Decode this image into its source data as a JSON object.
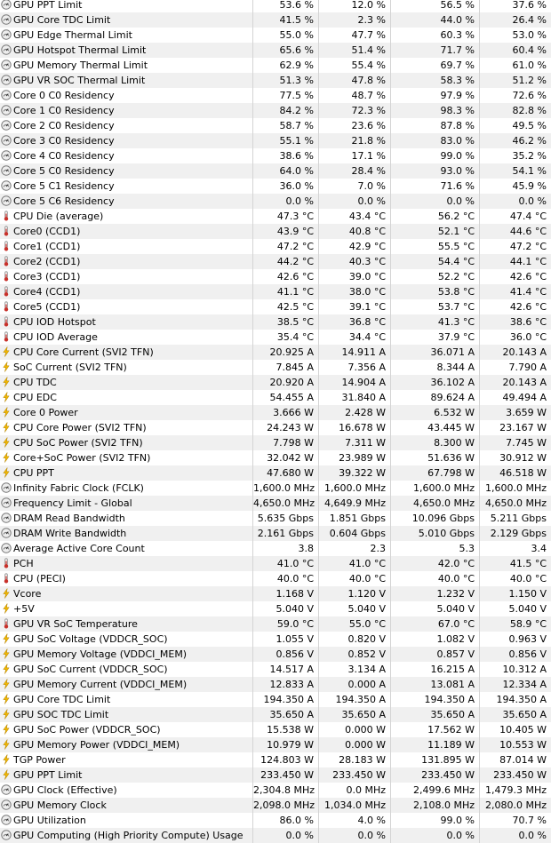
{
  "icon_colors": {
    "gauge": "#7a7a7a",
    "thermometer": "#c8302a",
    "bolt": "#f2b800"
  },
  "rows": [
    {
      "icon": "gauge-icon",
      "label": "GPU PPT Limit",
      "current": "53.6 %",
      "min": "12.0 %",
      "max": "56.5 %",
      "avg": "37.6 %"
    },
    {
      "icon": "gauge-icon",
      "label": "GPU Core TDC Limit",
      "current": "41.5 %",
      "min": "2.3 %",
      "max": "44.0 %",
      "avg": "26.4 %"
    },
    {
      "icon": "gauge-icon",
      "label": "GPU Edge Thermal Limit",
      "current": "55.0 %",
      "min": "47.7 %",
      "max": "60.3 %",
      "avg": "53.0 %"
    },
    {
      "icon": "gauge-icon",
      "label": "GPU Hotspot Thermal Limit",
      "current": "65.6 %",
      "min": "51.4 %",
      "max": "71.7 %",
      "avg": "60.4 %"
    },
    {
      "icon": "gauge-icon",
      "label": "GPU Memory Thermal Limit",
      "current": "62.9 %",
      "min": "55.4 %",
      "max": "69.7 %",
      "avg": "61.0 %"
    },
    {
      "icon": "gauge-icon",
      "label": "GPU VR SOC Thermal Limit",
      "current": "51.3 %",
      "min": "47.8 %",
      "max": "58.3 %",
      "avg": "51.2 %"
    },
    {
      "icon": "gauge-icon",
      "label": "Core 0 C0 Residency",
      "current": "77.5 %",
      "min": "48.7 %",
      "max": "97.9 %",
      "avg": "72.6 %"
    },
    {
      "icon": "gauge-icon",
      "label": "Core 1 C0 Residency",
      "current": "84.2 %",
      "min": "72.3 %",
      "max": "98.3 %",
      "avg": "82.8 %"
    },
    {
      "icon": "gauge-icon",
      "label": "Core 2 C0 Residency",
      "current": "58.7 %",
      "min": "23.6 %",
      "max": "87.8 %",
      "avg": "49.5 %"
    },
    {
      "icon": "gauge-icon",
      "label": "Core 3 C0 Residency",
      "current": "55.1 %",
      "min": "21.8 %",
      "max": "83.0 %",
      "avg": "46.2 %"
    },
    {
      "icon": "gauge-icon",
      "label": "Core 4 C0 Residency",
      "current": "38.6 %",
      "min": "17.1 %",
      "max": "99.0 %",
      "avg": "35.2 %"
    },
    {
      "icon": "gauge-icon",
      "label": "Core 5 C0 Residency",
      "current": "64.0 %",
      "min": "28.4 %",
      "max": "93.0 %",
      "avg": "54.1 %"
    },
    {
      "icon": "gauge-icon",
      "label": "Core 5 C1 Residency",
      "current": "36.0 %",
      "min": "7.0 %",
      "max": "71.6 %",
      "avg": "45.9 %"
    },
    {
      "icon": "gauge-icon",
      "label": "Core 5 C6 Residency",
      "current": "0.0 %",
      "min": "0.0 %",
      "max": "0.0 %",
      "avg": "0.0 %"
    },
    {
      "icon": "thermometer-icon",
      "label": "CPU Die (average)",
      "current": "47.3 °C",
      "min": "43.4 °C",
      "max": "56.2 °C",
      "avg": "47.4 °C"
    },
    {
      "icon": "thermometer-icon",
      "label": "Core0 (CCD1)",
      "current": "43.9 °C",
      "min": "40.8 °C",
      "max": "52.1 °C",
      "avg": "44.6 °C"
    },
    {
      "icon": "thermometer-icon",
      "label": "Core1 (CCD1)",
      "current": "47.2 °C",
      "min": "42.9 °C",
      "max": "55.5 °C",
      "avg": "47.2 °C"
    },
    {
      "icon": "thermometer-icon",
      "label": "Core2 (CCD1)",
      "current": "44.2 °C",
      "min": "40.3 °C",
      "max": "54.4 °C",
      "avg": "44.1 °C"
    },
    {
      "icon": "thermometer-icon",
      "label": "Core3 (CCD1)",
      "current": "42.6 °C",
      "min": "39.0 °C",
      "max": "52.2 °C",
      "avg": "42.6 °C"
    },
    {
      "icon": "thermometer-icon",
      "label": "Core4 (CCD1)",
      "current": "41.1 °C",
      "min": "38.0 °C",
      "max": "53.8 °C",
      "avg": "41.4 °C"
    },
    {
      "icon": "thermometer-icon",
      "label": "Core5 (CCD1)",
      "current": "42.5 °C",
      "min": "39.1 °C",
      "max": "53.7 °C",
      "avg": "42.6 °C"
    },
    {
      "icon": "thermometer-icon",
      "label": "CPU IOD Hotspot",
      "current": "38.5 °C",
      "min": "36.8 °C",
      "max": "41.3 °C",
      "avg": "38.6 °C"
    },
    {
      "icon": "thermometer-icon",
      "label": "CPU IOD Average",
      "current": "35.4 °C",
      "min": "34.4 °C",
      "max": "37.9 °C",
      "avg": "36.0 °C"
    },
    {
      "icon": "bolt-icon",
      "label": "CPU Core Current (SVI2 TFN)",
      "current": "20.925 A",
      "min": "14.911 A",
      "max": "36.071 A",
      "avg": "20.143 A"
    },
    {
      "icon": "bolt-icon",
      "label": "SoC Current (SVI2 TFN)",
      "current": "7.845 A",
      "min": "7.356 A",
      "max": "8.344 A",
      "avg": "7.790 A"
    },
    {
      "icon": "bolt-icon",
      "label": "CPU TDC",
      "current": "20.920 A",
      "min": "14.904 A",
      "max": "36.102 A",
      "avg": "20.143 A"
    },
    {
      "icon": "bolt-icon",
      "label": "CPU EDC",
      "current": "54.455 A",
      "min": "31.840 A",
      "max": "89.624 A",
      "avg": "49.494 A"
    },
    {
      "icon": "bolt-icon",
      "label": "Core 0 Power",
      "current": "3.666 W",
      "min": "2.428 W",
      "max": "6.532 W",
      "avg": "3.659 W"
    },
    {
      "icon": "bolt-icon",
      "label": "CPU Core Power (SVI2 TFN)",
      "current": "24.243 W",
      "min": "16.678 W",
      "max": "43.445 W",
      "avg": "23.167 W"
    },
    {
      "icon": "bolt-icon",
      "label": "CPU SoC Power (SVI2 TFN)",
      "current": "7.798 W",
      "min": "7.311 W",
      "max": "8.300 W",
      "avg": "7.745 W"
    },
    {
      "icon": "bolt-icon",
      "label": "Core+SoC Power (SVI2 TFN)",
      "current": "32.042 W",
      "min": "23.989 W",
      "max": "51.636 W",
      "avg": "30.912 W"
    },
    {
      "icon": "bolt-icon",
      "label": "CPU PPT",
      "current": "47.680 W",
      "min": "39.322 W",
      "max": "67.798 W",
      "avg": "46.518 W"
    },
    {
      "icon": "gauge-icon",
      "label": "Infinity Fabric Clock (FCLK)",
      "current": "1,600.0 MHz",
      "min": "1,600.0 MHz",
      "max": "1,600.0 MHz",
      "avg": "1,600.0 MHz"
    },
    {
      "icon": "gauge-icon",
      "label": "Frequency Limit - Global",
      "current": "4,650.0 MHz",
      "min": "4,649.9 MHz",
      "max": "4,650.0 MHz",
      "avg": "4,650.0 MHz"
    },
    {
      "icon": "gauge-icon",
      "label": "DRAM Read Bandwidth",
      "current": "5.635 Gbps",
      "min": "1.851 Gbps",
      "max": "10.096 Gbps",
      "avg": "5.211 Gbps"
    },
    {
      "icon": "gauge-icon",
      "label": "DRAM Write Bandwidth",
      "current": "2.161 Gbps",
      "min": "0.604 Gbps",
      "max": "5.010 Gbps",
      "avg": "2.129 Gbps"
    },
    {
      "icon": "gauge-icon",
      "label": "Average Active Core Count",
      "current": "3.8",
      "min": "2.3",
      "max": "5.3",
      "avg": "3.4"
    },
    {
      "icon": "thermometer-icon",
      "label": "PCH",
      "current": "41.0 °C",
      "min": "41.0 °C",
      "max": "42.0 °C",
      "avg": "41.5 °C"
    },
    {
      "icon": "thermometer-icon",
      "label": "CPU (PECI)",
      "current": "40.0 °C",
      "min": "40.0 °C",
      "max": "40.0 °C",
      "avg": "40.0 °C"
    },
    {
      "icon": "bolt-icon",
      "label": "Vcore",
      "current": "1.168 V",
      "min": "1.120 V",
      "max": "1.232 V",
      "avg": "1.150 V"
    },
    {
      "icon": "bolt-icon",
      "label": "+5V",
      "current": "5.040 V",
      "min": "5.040 V",
      "max": "5.040 V",
      "avg": "5.040 V"
    },
    {
      "icon": "thermometer-icon",
      "label": "GPU VR SoC Temperature",
      "current": "59.0 °C",
      "min": "55.0 °C",
      "max": "67.0 °C",
      "avg": "58.9 °C"
    },
    {
      "icon": "bolt-icon",
      "label": "GPU SoC Voltage (VDDCR_SOC)",
      "current": "1.055 V",
      "min": "0.820 V",
      "max": "1.082 V",
      "avg": "0.963 V"
    },
    {
      "icon": "bolt-icon",
      "label": "GPU Memory Voltage (VDDCI_MEM)",
      "current": "0.856 V",
      "min": "0.852 V",
      "max": "0.857 V",
      "avg": "0.856 V"
    },
    {
      "icon": "bolt-icon",
      "label": "GPU SoC Current (VDDCR_SOC)",
      "current": "14.517 A",
      "min": "3.134 A",
      "max": "16.215 A",
      "avg": "10.312 A"
    },
    {
      "icon": "bolt-icon",
      "label": "GPU Memory Current (VDDCI_MEM)",
      "current": "12.833 A",
      "min": "0.000 A",
      "max": "13.081 A",
      "avg": "12.334 A"
    },
    {
      "icon": "bolt-icon",
      "label": "GPU Core TDC Limit",
      "current": "194.350 A",
      "min": "194.350 A",
      "max": "194.350 A",
      "avg": "194.350 A"
    },
    {
      "icon": "bolt-icon",
      "label": "GPU SOC TDC Limit",
      "current": "35.650 A",
      "min": "35.650 A",
      "max": "35.650 A",
      "avg": "35.650 A"
    },
    {
      "icon": "bolt-icon",
      "label": "GPU SoC Power (VDDCR_SOC)",
      "current": "15.538 W",
      "min": "0.000 W",
      "max": "17.562 W",
      "avg": "10.405 W"
    },
    {
      "icon": "bolt-icon",
      "label": "GPU Memory Power (VDDCI_MEM)",
      "current": "10.979 W",
      "min": "0.000 W",
      "max": "11.189 W",
      "avg": "10.553 W"
    },
    {
      "icon": "bolt-icon",
      "label": "TGP Power",
      "current": "124.803 W",
      "min": "28.183 W",
      "max": "131.895 W",
      "avg": "87.014 W"
    },
    {
      "icon": "bolt-icon",
      "label": "GPU PPT Limit",
      "current": "233.450 W",
      "min": "233.450 W",
      "max": "233.450 W",
      "avg": "233.450 W"
    },
    {
      "icon": "gauge-icon",
      "label": "GPU Clock (Effective)",
      "current": "2,304.8 MHz",
      "min": "0.0 MHz",
      "max": "2,499.6 MHz",
      "avg": "1,479.3 MHz"
    },
    {
      "icon": "gauge-icon",
      "label": "GPU Memory Clock",
      "current": "2,098.0 MHz",
      "min": "1,034.0 MHz",
      "max": "2,108.0 MHz",
      "avg": "2,080.0 MHz"
    },
    {
      "icon": "gauge-icon",
      "label": "GPU Utilization",
      "current": "86.0 %",
      "min": "4.0 %",
      "max": "99.0 %",
      "avg": "70.7 %"
    },
    {
      "icon": "gauge-icon",
      "label": "GPU Computing (High Priority Compute) Usage",
      "current": "0.0 %",
      "min": "0.0 %",
      "max": "0.0 %",
      "avg": "0.0 %"
    }
  ]
}
